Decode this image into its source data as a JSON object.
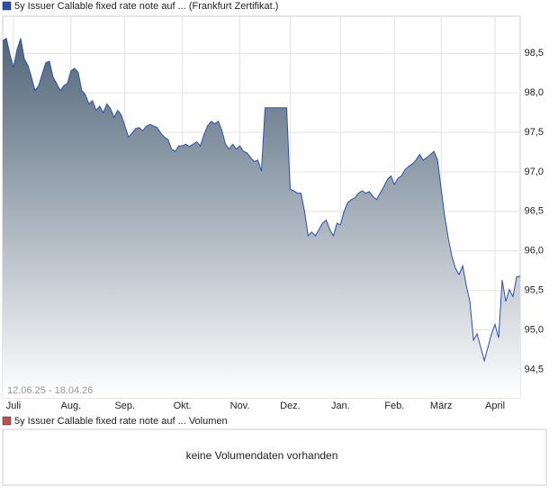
{
  "chart_data": {
    "type": "area",
    "date_range": "12.06.25 - 18.04.26",
    "series": [
      {
        "name": "5y Issuer Callable fixed rate note auf ... (Frankfurt Zertifikat.)",
        "color": "#2a4fb0",
        "values": [
          98.66,
          98.69,
          98.49,
          98.32,
          98.55,
          98.69,
          98.43,
          98.35,
          98.2,
          98.03,
          98.09,
          98.24,
          98.38,
          98.4,
          98.2,
          98.12,
          98.03,
          98.09,
          98.12,
          98.28,
          98.31,
          98.26,
          98.03,
          97.98,
          97.86,
          97.9,
          97.78,
          97.83,
          97.75,
          97.86,
          97.8,
          97.69,
          97.78,
          97.72,
          97.58,
          97.44,
          97.49,
          97.55,
          97.56,
          97.52,
          97.58,
          97.6,
          97.58,
          97.56,
          97.49,
          97.44,
          97.41,
          97.29,
          97.26,
          97.33,
          97.33,
          97.35,
          97.32,
          97.35,
          97.38,
          97.33,
          97.47,
          97.58,
          97.64,
          97.61,
          97.64,
          97.52,
          97.35,
          97.29,
          97.35,
          97.29,
          97.33,
          97.26,
          97.24,
          97.18,
          97.13,
          97.15,
          97.01,
          97.81,
          97.81,
          97.81,
          97.81,
          97.81,
          97.81,
          97.81,
          96.78,
          96.76,
          96.73,
          96.73,
          96.5,
          96.19,
          96.24,
          96.19,
          96.27,
          96.35,
          96.39,
          96.27,
          96.19,
          96.35,
          96.33,
          96.5,
          96.61,
          96.65,
          96.67,
          96.73,
          96.76,
          96.73,
          96.75,
          96.69,
          96.65,
          96.73,
          96.81,
          96.9,
          96.95,
          96.84,
          96.92,
          96.95,
          97.03,
          97.07,
          97.1,
          97.15,
          97.22,
          97.15,
          97.18,
          97.22,
          97.26,
          97.15,
          96.78,
          96.44,
          96.16,
          95.93,
          95.78,
          95.7,
          95.81,
          95.56,
          95.36,
          94.87,
          94.95,
          94.78,
          94.61,
          94.78,
          94.95,
          95.07,
          94.9,
          95.63,
          95.36,
          95.51,
          95.42,
          95.67,
          95.68
        ]
      }
    ],
    "xlim": [
      0,
      144
    ],
    "xticks": [
      {
        "value": 3,
        "label": "Juli"
      },
      {
        "value": 19,
        "label": "Aug."
      },
      {
        "value": 34,
        "label": "Sep."
      },
      {
        "value": 50,
        "label": "Okt."
      },
      {
        "value": 66,
        "label": "Nov."
      },
      {
        "value": 80,
        "label": "Dez."
      },
      {
        "value": 94,
        "label": "Jan."
      },
      {
        "value": 109,
        "label": "Feb."
      },
      {
        "value": 122,
        "label": "März"
      },
      {
        "value": 137,
        "label": "April"
      }
    ],
    "ylim": [
      94.14,
      98.97
    ],
    "yticks": [
      {
        "value": 94.5,
        "label": "94,5"
      },
      {
        "value": 95,
        "label": "95,0"
      },
      {
        "value": 95.5,
        "label": "95,5"
      },
      {
        "value": 96,
        "label": "96,0"
      },
      {
        "value": 96.5,
        "label": "96,5"
      },
      {
        "value": 97,
        "label": "97,0"
      },
      {
        "value": 97.5,
        "label": "97,5"
      },
      {
        "value": 98,
        "label": "98,0"
      },
      {
        "value": 98.5,
        "label": "98,5"
      }
    ],
    "grid": true
  },
  "volume_panel": {
    "legend": "5y Issuer Callable fixed rate note auf ... Volumen",
    "color": "#c0504d",
    "message": "keine Volumendaten vorhanden"
  }
}
